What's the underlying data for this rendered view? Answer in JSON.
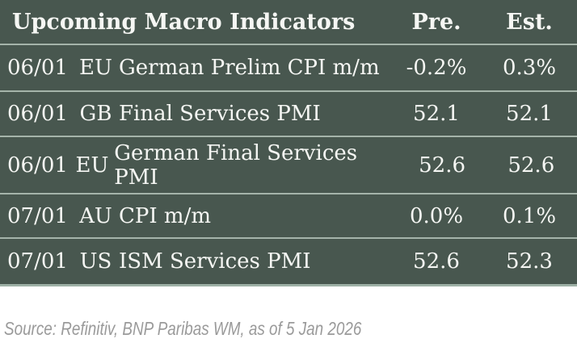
{
  "chart_data": {
    "type": "table",
    "title": "Upcoming Macro Indicators",
    "column_headers": {
      "pre": "Pre.",
      "est": "Est."
    },
    "implicit_columns": [
      "date",
      "region",
      "indicator",
      "pre",
      "est"
    ],
    "rows": [
      {
        "date": "06/01",
        "region": "EU",
        "indicator": "German Prelim CPI m/m",
        "pre": "-0.2%",
        "est": "0.3%"
      },
      {
        "date": "06/01",
        "region": "GB",
        "indicator": "Final Services PMI",
        "pre": "52.1",
        "est": "52.1"
      },
      {
        "date": "06/01",
        "region": "EU",
        "indicator": "German Final Services PMI",
        "pre": "52.6",
        "est": "52.6"
      },
      {
        "date": "07/01",
        "region": "AU",
        "indicator": "CPI m/m",
        "pre": "0.0%",
        "est": "0.1%"
      },
      {
        "date": "07/01",
        "region": "US",
        "indicator": "ISM Services PMI",
        "pre": "52.6",
        "est": "52.3"
      }
    ],
    "source_note": "Source: Refinitiv, BNP Paribas WM, as of 5 Jan 2026"
  },
  "colors": {
    "table_background": "#48574F",
    "row_divider": "#A5B4AA",
    "table_bottom_border": "#9DB0A5",
    "table_text": "#F5F6F3",
    "source_text": "#9A9A9A",
    "page_background": "#FFFFFF"
  }
}
